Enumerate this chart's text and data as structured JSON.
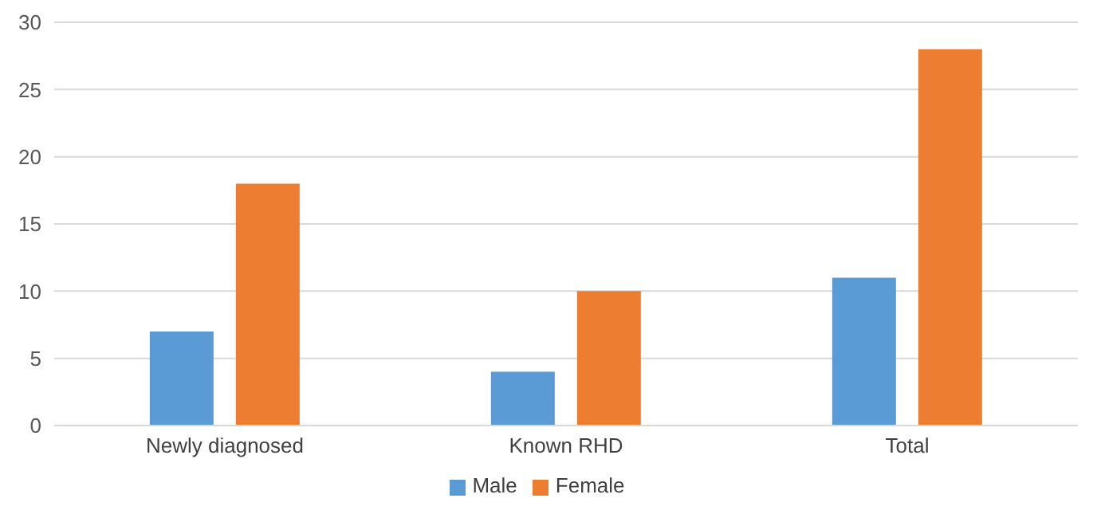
{
  "chart_data": {
    "type": "bar",
    "categories": [
      "Newly diagnosed",
      "Known RHD",
      "Total"
    ],
    "series": [
      {
        "name": "Male",
        "color": "#5b9bd5",
        "values": [
          7,
          4,
          11
        ]
      },
      {
        "name": "Female",
        "color": "#ed7d31",
        "values": [
          18,
          10,
          28
        ]
      }
    ],
    "ylim": [
      0,
      30
    ],
    "yticks": [
      0,
      5,
      10,
      15,
      20,
      25,
      30
    ],
    "grid": "y",
    "legend": "bottom"
  }
}
